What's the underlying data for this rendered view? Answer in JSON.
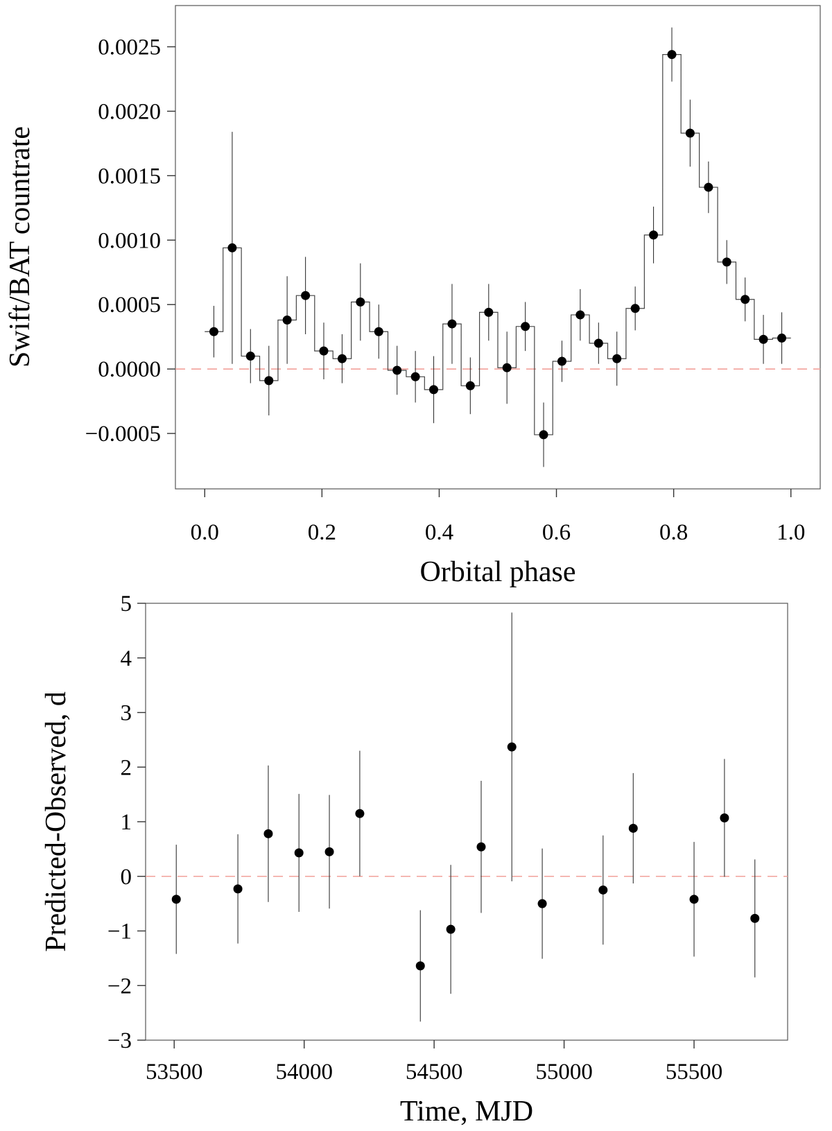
{
  "chart_data": [
    {
      "type": "scatter",
      "title": "",
      "xlabel": "Orbital phase",
      "ylabel": "Swift/BAT countrate",
      "xlim": [
        -0.05,
        1.05
      ],
      "ylim": [
        -0.00093,
        0.00282
      ],
      "xticks": [
        0.0,
        0.2,
        0.4,
        0.6,
        0.8,
        1.0
      ],
      "xtick_labels": [
        "0.0",
        "0.2",
        "0.4",
        "0.6",
        "0.8",
        "1.0"
      ],
      "yticks": [
        -0.0005,
        0.0,
        0.0005,
        0.001,
        0.0015,
        0.002,
        0.0025
      ],
      "ytick_labels": [
        "−0.0005",
        "0.0000",
        "0.0005",
        "0.0010",
        "0.0015",
        "0.0020",
        "0.0025"
      ],
      "step_histogram": true,
      "bin_width": 0.03125,
      "reference_line": {
        "y": 0,
        "style": "dashed",
        "color": "#f2a19a"
      },
      "points": [
        {
          "x": 0.0156,
          "y": 0.00029,
          "err": 0.0002
        },
        {
          "x": 0.0469,
          "y": 0.00094,
          "err": 0.0009
        },
        {
          "x": 0.0781,
          "y": 0.0001,
          "err": 0.00021
        },
        {
          "x": 0.1094,
          "y": -9e-05,
          "err": 0.00027
        },
        {
          "x": 0.1406,
          "y": 0.00038,
          "err": 0.00034
        },
        {
          "x": 0.1719,
          "y": 0.00057,
          "err": 0.0003
        },
        {
          "x": 0.2031,
          "y": 0.00014,
          "err": 0.00022
        },
        {
          "x": 0.2344,
          "y": 8e-05,
          "err": 0.00019
        },
        {
          "x": 0.2656,
          "y": 0.00052,
          "err": 0.0003
        },
        {
          "x": 0.2969,
          "y": 0.00029,
          "err": 0.00021
        },
        {
          "x": 0.3281,
          "y": -1e-05,
          "err": 0.00019
        },
        {
          "x": 0.3594,
          "y": -6e-05,
          "err": 0.0002
        },
        {
          "x": 0.3906,
          "y": -0.00016,
          "err": 0.00026
        },
        {
          "x": 0.4219,
          "y": 0.00035,
          "err": 0.00031
        },
        {
          "x": 0.4531,
          "y": -0.00013,
          "err": 0.00022
        },
        {
          "x": 0.4844,
          "y": 0.00044,
          "err": 0.00022
        },
        {
          "x": 0.5156,
          "y": 1e-05,
          "err": 0.00028
        },
        {
          "x": 0.5469,
          "y": 0.00033,
          "err": 0.00019
        },
        {
          "x": 0.5781,
          "y": -0.00051,
          "err": 0.00025
        },
        {
          "x": 0.6094,
          "y": 6e-05,
          "err": 0.00016
        },
        {
          "x": 0.6406,
          "y": 0.00042,
          "err": 0.0002
        },
        {
          "x": 0.6719,
          "y": 0.0002,
          "err": 0.00016
        },
        {
          "x": 0.7031,
          "y": 8e-05,
          "err": 0.00021
        },
        {
          "x": 0.7344,
          "y": 0.00047,
          "err": 0.00017
        },
        {
          "x": 0.7656,
          "y": 0.00104,
          "err": 0.00022
        },
        {
          "x": 0.7969,
          "y": 0.00244,
          "err": 0.00021
        },
        {
          "x": 0.8281,
          "y": 0.00183,
          "err": 0.00026
        },
        {
          "x": 0.8594,
          "y": 0.00141,
          "err": 0.0002
        },
        {
          "x": 0.8906,
          "y": 0.00083,
          "err": 0.00017
        },
        {
          "x": 0.9219,
          "y": 0.00054,
          "err": 0.00017
        },
        {
          "x": 0.9531,
          "y": 0.00023,
          "err": 0.00019
        },
        {
          "x": 0.9844,
          "y": 0.00024,
          "err": 0.0002
        }
      ]
    },
    {
      "type": "scatter",
      "title": "",
      "xlabel": "Time, MJD",
      "ylabel": "Predicted-Observed, d",
      "xlim": [
        53390,
        55860
      ],
      "ylim": [
        -3.0,
        5.0
      ],
      "xticks": [
        53500,
        54000,
        54500,
        55000,
        55500
      ],
      "xtick_labels": [
        "53500",
        "54000",
        "54500",
        "55000",
        "55500"
      ],
      "yticks": [
        -3,
        -2,
        -1,
        0,
        1,
        2,
        3,
        4,
        5
      ],
      "ytick_labels": [
        "−3",
        "−2",
        "−1",
        "0",
        "1",
        "2",
        "3",
        "4",
        "5"
      ],
      "step_histogram": false,
      "reference_line": {
        "y": 0,
        "style": "dashed",
        "color": "#f2a19a"
      },
      "points": [
        {
          "x": 53508,
          "y": -0.42,
          "err": 1.0
        },
        {
          "x": 53745,
          "y": -0.23,
          "err": 1.0
        },
        {
          "x": 53862,
          "y": 0.78,
          "err": 1.25
        },
        {
          "x": 53980,
          "y": 0.43,
          "err": 1.08
        },
        {
          "x": 54097,
          "y": 0.45,
          "err": 1.04
        },
        {
          "x": 54214,
          "y": 1.15,
          "err": 1.15
        },
        {
          "x": 54447,
          "y": -1.64,
          "err": 1.02
        },
        {
          "x": 54564,
          "y": -0.97,
          "err": 1.18
        },
        {
          "x": 54681,
          "y": 0.54,
          "err": 1.21
        },
        {
          "x": 54799,
          "y": 2.37,
          "err": 2.46
        },
        {
          "x": 54916,
          "y": -0.5,
          "err": 1.01
        },
        {
          "x": 55150,
          "y": -0.25,
          "err": 1.0
        },
        {
          "x": 55266,
          "y": 0.88,
          "err": 1.01
        },
        {
          "x": 55500,
          "y": -0.42,
          "err": 1.05
        },
        {
          "x": 55617,
          "y": 1.07,
          "err": 1.08
        },
        {
          "x": 55734,
          "y": -0.77,
          "err": 1.08
        }
      ]
    }
  ]
}
